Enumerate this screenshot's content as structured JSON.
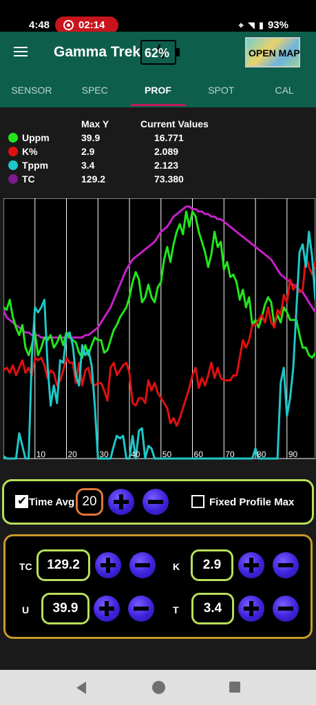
{
  "status_bar": {
    "time": "4:48",
    "recording_time": "02:14",
    "battery": "93%"
  },
  "app_bar": {
    "title": "Gamma Trek",
    "battery_level": "62%",
    "open_map_label": "OPEN MAP"
  },
  "tabs": [
    {
      "label": "SENSOR",
      "active": false
    },
    {
      "label": "SPEC",
      "active": false
    },
    {
      "label": "PROF",
      "active": true
    },
    {
      "label": "SPOT",
      "active": false
    },
    {
      "label": "CAL",
      "active": false
    }
  ],
  "legend": {
    "header_max": "Max Y",
    "header_current": "Current Values",
    "rows": [
      {
        "name": "Uppm",
        "max": "39.9",
        "current": "16.771",
        "color": "#22e61c"
      },
      {
        "name": "K%",
        "max": "2.9",
        "current": "2.089",
        "color": "#e01010"
      },
      {
        "name": "Tppm",
        "max": "3.4",
        "current": "2.123",
        "color": "#1ec8c8"
      },
      {
        "name": "TC",
        "max": "129.2",
        "current": "73.380",
        "color": "#7a1a8c"
      }
    ]
  },
  "chart_data": {
    "type": "line",
    "x": [
      0,
      1,
      2,
      3,
      4,
      5,
      6,
      7,
      8,
      9,
      10,
      11,
      12,
      13,
      14,
      15,
      16,
      17,
      18,
      19,
      20,
      21,
      22,
      23,
      24,
      25,
      26,
      27,
      28,
      29,
      30,
      31,
      32,
      33,
      34,
      35,
      36,
      37,
      38,
      39,
      40,
      41,
      42,
      43,
      44,
      45,
      46,
      47,
      48,
      49,
      50,
      51,
      52,
      53,
      54,
      55,
      56,
      57,
      58,
      59,
      60,
      61,
      62,
      63,
      64,
      65,
      66,
      67,
      68,
      69,
      70,
      71,
      72,
      73,
      74,
      75,
      76,
      77,
      78,
      79,
      80,
      81,
      82,
      83,
      84,
      85,
      86,
      87,
      88,
      89,
      90,
      91,
      92,
      93,
      94,
      95,
      96,
      97,
      98,
      99
    ],
    "xticks": [
      "10",
      "20",
      "30",
      "40",
      "50",
      "60",
      "70",
      "80",
      "90"
    ],
    "xlim": [
      0,
      99
    ],
    "series": [
      {
        "name": "TC",
        "color": "#c621c8",
        "values": [
          0.59,
          0.56,
          0.55,
          0.54,
          0.53,
          0.52,
          0.51,
          0.5,
          0.5,
          0.49,
          0.49,
          0.49,
          0.48,
          0.48,
          0.48,
          0.48,
          0.48,
          0.48,
          0.48,
          0.48,
          0.48,
          0.48,
          0.48,
          0.48,
          0.48,
          0.48,
          0.49,
          0.49,
          0.5,
          0.51,
          0.52,
          0.54,
          0.56,
          0.58,
          0.6,
          0.63,
          0.66,
          0.69,
          0.72,
          0.75,
          0.77,
          0.79,
          0.8,
          0.81,
          0.82,
          0.83,
          0.84,
          0.85,
          0.86,
          0.88,
          0.9,
          0.91,
          0.92,
          0.94,
          0.96,
          0.97,
          0.98,
          0.99,
          1.0,
          1.0,
          0.99,
          0.99,
          0.98,
          0.98,
          0.97,
          0.97,
          0.96,
          0.96,
          0.95,
          0.95,
          0.94,
          0.93,
          0.92,
          0.91,
          0.9,
          0.89,
          0.88,
          0.87,
          0.86,
          0.85,
          0.84,
          0.83,
          0.82,
          0.81,
          0.8,
          0.79,
          0.77,
          0.75,
          0.73,
          0.72,
          0.71,
          0.7,
          0.69,
          0.68,
          0.67,
          0.66,
          0.64,
          0.62,
          0.6,
          0.58
        ]
      },
      {
        "name": "Uppm",
        "color": "#22e61c",
        "values": [
          0.6,
          0.59,
          0.63,
          0.56,
          0.52,
          0.49,
          0.53,
          0.44,
          0.41,
          0.45,
          0.5,
          0.41,
          0.44,
          0.48,
          0.47,
          0.49,
          0.44,
          0.46,
          0.49,
          0.45,
          0.5,
          0.48,
          0.47,
          0.46,
          0.42,
          0.4,
          0.45,
          0.41,
          0.45,
          0.48,
          0.47,
          0.47,
          0.42,
          0.43,
          0.47,
          0.51,
          0.53,
          0.56,
          0.58,
          0.6,
          0.64,
          0.7,
          0.74,
          0.71,
          0.62,
          0.64,
          0.69,
          0.64,
          0.62,
          0.68,
          0.7,
          0.79,
          0.84,
          0.78,
          0.85,
          0.9,
          0.93,
          0.89,
          0.98,
          0.92,
          0.98,
          0.96,
          0.9,
          0.86,
          0.82,
          0.76,
          0.81,
          0.9,
          0.84,
          0.86,
          0.75,
          0.78,
          0.72,
          0.73,
          0.7,
          0.63,
          0.67,
          0.6,
          0.64,
          0.53,
          0.55,
          0.52,
          0.56,
          0.61,
          0.64,
          0.62,
          0.53,
          0.57,
          0.54,
          0.6,
          0.58,
          0.55,
          0.55,
          0.55,
          0.49,
          0.44,
          0.44,
          0.41,
          0.4,
          0.42
        ]
      },
      {
        "name": "K%",
        "color": "#e01010",
        "values": [
          0.35,
          0.36,
          0.34,
          0.37,
          0.33,
          0.36,
          0.39,
          0.34,
          0.36,
          0.33,
          0.4,
          0.39,
          0.4,
          0.37,
          0.32,
          0.35,
          0.34,
          0.29,
          0.31,
          0.35,
          0.4,
          0.38,
          0.38,
          0.3,
          0.38,
          0.29,
          0.35,
          0.36,
          0.3,
          0.29,
          0.3,
          0.3,
          0.27,
          0.23,
          0.36,
          0.38,
          0.33,
          0.35,
          0.37,
          0.38,
          0.34,
          0.22,
          0.21,
          0.24,
          0.24,
          0.22,
          0.31,
          0.27,
          0.3,
          0.26,
          0.24,
          0.22,
          0.2,
          0.14,
          0.16,
          0.13,
          0.16,
          0.2,
          0.24,
          0.28,
          0.33,
          0.36,
          0.28,
          0.32,
          0.29,
          0.33,
          0.38,
          0.32,
          0.36,
          0.32,
          0.31,
          0.31,
          0.31,
          0.33,
          0.33,
          0.4,
          0.47,
          0.44,
          0.47,
          0.53,
          0.53,
          0.55,
          0.57,
          0.54,
          0.6,
          0.54,
          0.52,
          0.59,
          0.57,
          0.65,
          0.62,
          0.71,
          0.67,
          0.69,
          0.66,
          0.67,
          0.8,
          0.76,
          0.73,
          0.78
        ]
      },
      {
        "name": "Tppm",
        "color": "#1ec8c8",
        "values": [
          0.01,
          0.0,
          0.0,
          0.0,
          0.0,
          0.1,
          0.05,
          0.0,
          0.0,
          0.4,
          0.6,
          0.58,
          0.6,
          0.63,
          0.37,
          0.21,
          0.29,
          0.22,
          0.39,
          0.38,
          0.49,
          0.5,
          0.45,
          0.33,
          0.29,
          0.45,
          0.41,
          0.43,
          0.37,
          0.21,
          0.0,
          0.0,
          0.0,
          0.0,
          0.0,
          0.05,
          0.09,
          0.08,
          0.09,
          0.0,
          0.0,
          0.09,
          0.0,
          0.11,
          0.12,
          0.0,
          0.05,
          0.04,
          0.0,
          0.0,
          0.0,
          0.0,
          0.0,
          0.0,
          0.0,
          0.0,
          0.0,
          0.0,
          0.0,
          0.0,
          0.0,
          0.0,
          0.0,
          0.0,
          0.0,
          0.0,
          0.0,
          0.0,
          0.0,
          0.0,
          0.0,
          0.0,
          0.0,
          0.0,
          0.0,
          0.0,
          0.0,
          0.0,
          0.0,
          0.0,
          0.04,
          0.0,
          0.0,
          0.0,
          0.0,
          0.0,
          0.0,
          0.0,
          0.3,
          0.36,
          0.17,
          0.24,
          0.36,
          0.59,
          0.82,
          0.85,
          0.76,
          0.9,
          0.8,
          0.63
        ]
      }
    ]
  },
  "time_avg": {
    "checked": true,
    "label": "Time Avg",
    "value": "20",
    "fixed_max_checked": false,
    "fixed_max_label": "Fixed Profile Max"
  },
  "limits": [
    {
      "label": "TC",
      "value": "129.2"
    },
    {
      "label": "K",
      "value": "2.9"
    },
    {
      "label": "U",
      "value": "39.9"
    },
    {
      "label": "T",
      "value": "3.4"
    }
  ]
}
